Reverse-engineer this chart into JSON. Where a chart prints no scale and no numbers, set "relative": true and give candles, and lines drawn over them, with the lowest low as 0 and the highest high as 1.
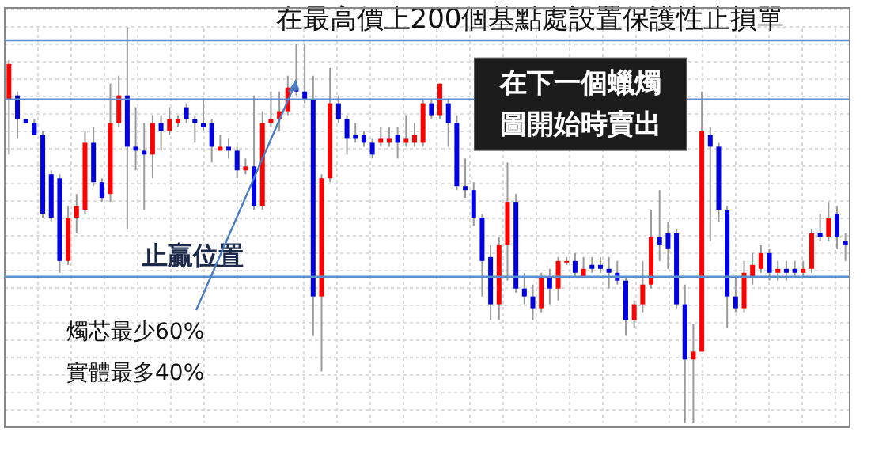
{
  "chart_data": {
    "type": "candlestick",
    "relative": true,
    "grid": true,
    "tick_labels": false,
    "colors": [
      "#ff0000",
      "#0000e0",
      "#0000e0",
      "#0000e0",
      "#0000e0",
      "#0000e0",
      "#0000e0",
      "#ff0000",
      "#ff0000",
      "#ff0000",
      "#0000e0",
      "#0000e0",
      "#ff0000",
      "#ff0000",
      "#0000e0",
      "#0000e0",
      "#0000e0",
      "#ff0000",
      "#0000e0",
      "#ff0000",
      "#ff0000",
      "#0000e0",
      "#0000e0",
      "#0000e0",
      "#0000e0",
      "#ff0000",
      "#0000e0",
      "#0000e0",
      "#ff0000",
      "#0000e0",
      "#ff0000",
      "#ff0000",
      "#ff0000",
      "#ff0000",
      "#0000e0",
      "#0000e0",
      "#0000e0",
      "#ff0000",
      "#ff0000",
      "#0000e0",
      "#0000e0",
      "#0000e0",
      "#0000e0",
      "#0000e0",
      "#ff0000",
      "#ff0000",
      "#0000e0",
      "#ff0000",
      "#ff0000",
      "#ff0000",
      "#0000e0",
      "#ff0000",
      "#0000e0",
      "#0000e0",
      "#0000e0",
      "#0000e0",
      "#0000e0",
      "#0000e0",
      "#ff0000",
      "#ff0000",
      "#0000e0",
      "#0000e0",
      "#0000e0",
      "#ff0000",
      "#0000e0",
      "#ff0000",
      "#ff0000",
      "#0000e0",
      "#ff0000",
      "#0000e0",
      "#0000e0",
      "#0000e0",
      "#0000e0",
      "#0000e0",
      "#ff0000",
      "#ff0000",
      "#ff0000",
      "#0000e0",
      "#0000e0",
      "#0000e0",
      "#0000e0",
      "#ff0000",
      "#ff0000",
      "#0000e0",
      "#0000e0",
      "#0000e0",
      "#0000e0",
      "#ff0000",
      "#ff0000",
      "#ff0000",
      "#0000e0",
      "#ff0000",
      "#0000e0",
      "#0000e0",
      "#ff0000",
      "#ff0000",
      "#0000e0",
      "#ff0000",
      "#0000e0",
      "#0000e0"
    ],
    "categories": [
      null,
      null,
      null,
      null,
      null,
      null,
      null,
      null,
      null,
      null,
      null,
      null,
      null,
      null,
      null,
      null,
      null,
      null,
      null,
      null,
      null,
      null,
      null,
      null,
      null,
      null,
      null,
      null,
      null,
      null,
      null,
      null,
      null,
      null,
      null,
      null,
      null,
      null,
      null,
      null,
      null,
      null,
      null,
      null,
      null,
      null,
      null,
      null,
      null,
      null,
      null,
      null,
      null,
      null,
      null,
      null,
      null,
      null,
      null,
      null,
      null,
      null,
      null,
      null,
      null,
      null,
      null,
      null,
      null,
      null,
      null,
      null,
      null,
      null,
      null,
      null,
      null,
      null,
      null,
      null,
      null,
      null,
      null,
      null,
      null,
      null,
      null,
      null,
      null,
      null,
      null,
      null,
      null,
      null,
      null,
      null,
      null,
      null,
      null,
      null
    ],
    "ohlc": [
      [
        0.82,
        0.92,
        0.68,
        0.91
      ],
      [
        0.83,
        0.84,
        0.72,
        0.77
      ],
      [
        0.77,
        0.77,
        0.76,
        0.76
      ],
      [
        0.76,
        0.77,
        0.73,
        0.73
      ],
      [
        0.73,
        0.74,
        0.52,
        0.53
      ],
      [
        0.63,
        0.64,
        0.51,
        0.52
      ],
      [
        0.62,
        0.63,
        0.38,
        0.41
      ],
      [
        0.41,
        0.55,
        0.4,
        0.52
      ],
      [
        0.52,
        0.58,
        0.48,
        0.55
      ],
      [
        0.54,
        0.74,
        0.53,
        0.71
      ],
      [
        0.71,
        0.75,
        0.6,
        0.61
      ],
      [
        0.61,
        0.62,
        0.56,
        0.57
      ],
      [
        0.58,
        0.86,
        0.56,
        0.76
      ],
      [
        0.76,
        0.88,
        0.75,
        0.83
      ],
      [
        0.83,
        1,
        0.49,
        0.7
      ],
      [
        0.7,
        0.8,
        0.64,
        0.69
      ],
      [
        0.69,
        0.76,
        0.54,
        0.68
      ],
      [
        0.68,
        0.78,
        0.62,
        0.76
      ],
      [
        0.76,
        0.78,
        0.69,
        0.74
      ],
      [
        0.74,
        0.8,
        0.73,
        0.77
      ],
      [
        0.76,
        0.78,
        0.75,
        0.77
      ],
      [
        0.8,
        0.81,
        0.76,
        0.77
      ],
      [
        0.77,
        0.78,
        0.71,
        0.76
      ],
      [
        0.76,
        0.82,
        0.74,
        0.75
      ],
      [
        0.76,
        0.77,
        0.66,
        0.7
      ],
      [
        0.69,
        0.73,
        0.69,
        0.7
      ],
      [
        0.7,
        0.72,
        0.67,
        0.69
      ],
      [
        0.69,
        0.7,
        0.62,
        0.64
      ],
      [
        0.64,
        0.67,
        0.63,
        0.65
      ],
      [
        0.65,
        0.83,
        0.54,
        0.55
      ],
      [
        0.55,
        0.79,
        0.54,
        0.76
      ],
      [
        0.76,
        0.84,
        0.75,
        0.77
      ],
      [
        0.77,
        0.84,
        0.74,
        0.79
      ],
      [
        0.79,
        0.88,
        0.78,
        0.85
      ],
      [
        0.85,
        0.96,
        0.83,
        0.84
      ],
      [
        0.84,
        0.96,
        0.81,
        0.82
      ],
      [
        0.82,
        0.88,
        0.22,
        0.32
      ],
      [
        0.32,
        0.63,
        0.13,
        0.62
      ],
      [
        0.62,
        0.9,
        0.61,
        0.81
      ],
      [
        0.81,
        0.83,
        0.76,
        0.77
      ],
      [
        0.77,
        0.78,
        0.68,
        0.72
      ],
      [
        0.73,
        0.76,
        0.71,
        0.72
      ],
      [
        0.73,
        0.74,
        0.7,
        0.71
      ],
      [
        0.71,
        0.72,
        0.67,
        0.68
      ],
      [
        0.71,
        0.75,
        0.7,
        0.72
      ],
      [
        0.71,
        0.75,
        0.7,
        0.72
      ],
      [
        0.73,
        0.75,
        0.67,
        0.71
      ],
      [
        0.71,
        0.78,
        0.7,
        0.72
      ],
      [
        0.71,
        0.76,
        0.7,
        0.73
      ],
      [
        0.71,
        0.82,
        0.7,
        0.81
      ],
      [
        0.81,
        0.82,
        0.77,
        0.78
      ],
      [
        0.78,
        0.86,
        0.77,
        0.86
      ],
      [
        0.81,
        0.82,
        0.7,
        0.76
      ],
      [
        0.76,
        0.78,
        0.59,
        0.6
      ],
      [
        0.6,
        0.67,
        0.57,
        0.59
      ],
      [
        0.59,
        0.61,
        0.5,
        0.52
      ],
      [
        0.52,
        0.53,
        0.32,
        0.41
      ],
      [
        0.42,
        0.45,
        0.26,
        0.3
      ],
      [
        0.3,
        0.47,
        0.26,
        0.45
      ],
      [
        0.45,
        0.66,
        0.36,
        0.56
      ],
      [
        0.56,
        0.58,
        0.33,
        0.34
      ],
      [
        0.34,
        0.38,
        0.3,
        0.32
      ],
      [
        0.32,
        0.35,
        0.26,
        0.29
      ],
      [
        0.29,
        0.38,
        0.28,
        0.37
      ],
      [
        0.37,
        0.39,
        0.3,
        0.34
      ],
      [
        0.34,
        0.42,
        0.31,
        0.41
      ],
      [
        0.41,
        0.42,
        0.4,
        0.41
      ],
      [
        0.41,
        0.43,
        0.37,
        0.38
      ],
      [
        0.37,
        0.42,
        0.37,
        0.39
      ],
      [
        0.4,
        0.42,
        0.38,
        0.39
      ],
      [
        0.4,
        0.42,
        0.38,
        0.39
      ],
      [
        0.39,
        0.42,
        0.34,
        0.38
      ],
      [
        0.38,
        0.41,
        0.35,
        0.36
      ],
      [
        0.36,
        0.37,
        0.22,
        0.26
      ],
      [
        0.26,
        0.31,
        0.24,
        0.3
      ],
      [
        0.3,
        0.41,
        0.28,
        0.35
      ],
      [
        0.35,
        0.54,
        0.34,
        0.47
      ],
      [
        0.47,
        0.59,
        0.41,
        0.45
      ],
      [
        0.48,
        0.51,
        0.39,
        0.44
      ],
      [
        0.48,
        0.49,
        0.29,
        0.3
      ],
      [
        0.3,
        0.35,
        0,
        0.16
      ],
      [
        0.16,
        0.25,
        0,
        0.18
      ],
      [
        0.18,
        0.84,
        0.18,
        0.74
      ],
      [
        0.73,
        0.75,
        0.46,
        0.7
      ],
      [
        0.7,
        0.71,
        0.51,
        0.54
      ],
      [
        0.54,
        0.55,
        0.24,
        0.32
      ],
      [
        0.32,
        0.37,
        0.28,
        0.29
      ],
      [
        0.29,
        0.41,
        0.28,
        0.38
      ],
      [
        0.37,
        0.43,
        0.35,
        0.4
      ],
      [
        0.39,
        0.45,
        0.38,
        0.43
      ],
      [
        0.43,
        0.44,
        0.36,
        0.38
      ],
      [
        0.38,
        0.41,
        0.36,
        0.39
      ],
      [
        0.39,
        0.41,
        0.36,
        0.38
      ],
      [
        0.39,
        0.41,
        0.37,
        0.38
      ],
      [
        0.38,
        0.41,
        0.37,
        0.39
      ],
      [
        0.39,
        0.49,
        0.38,
        0.48
      ],
      [
        0.48,
        0.53,
        0.46,
        0.47
      ],
      [
        0.47,
        0.56,
        0.46,
        0.52
      ],
      [
        0.53,
        0.55,
        0.44,
        0.47
      ],
      [
        0.46,
        0.48,
        0.41,
        0.45
      ]
    ],
    "ref_lines": [
      {
        "axis": "y",
        "value": 0.97,
        "label": "在最高價上200個基點處設置保護性止損單",
        "color": "#5b8fd0"
      },
      {
        "axis": "y",
        "value": 0.82,
        "label": "在下一個蠟燭圖開始時賣出",
        "color": "#5b8fd0"
      },
      {
        "axis": "y",
        "value": 0.37,
        "label": "止贏位置",
        "color": "#5b8fd0"
      }
    ],
    "annotations": [
      "燭芯最少60%",
      "實體最多40%"
    ]
  }
}
